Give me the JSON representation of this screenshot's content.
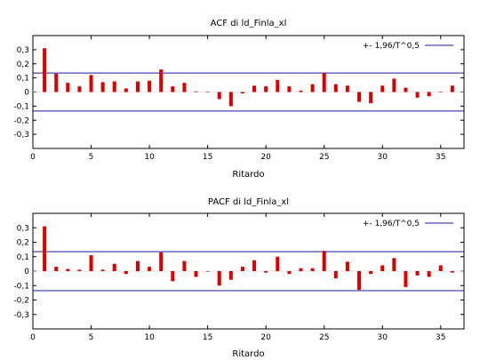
{
  "chart_data": [
    {
      "type": "bar",
      "title": "ACF di ld_Finla_xl",
      "xlabel": "Ritardo",
      "ylabel": "",
      "xlim": [
        0,
        37
      ],
      "ylim": [
        -0.4,
        0.4
      ],
      "x_ticks": [
        "0",
        "5",
        "10",
        "15",
        "20",
        "25",
        "30",
        "35"
      ],
      "y_ticks": [
        "0,3",
        "0,2",
        "0,1",
        "0",
        "-0,1",
        "-0,2",
        "-0,3"
      ],
      "legend": {
        "label": "+- 1,96/T^0,5",
        "position": "top-right"
      },
      "band": 0.135,
      "lags": [
        1,
        2,
        3,
        4,
        5,
        6,
        7,
        8,
        9,
        10,
        11,
        12,
        13,
        14,
        15,
        16,
        17,
        18,
        19,
        20,
        21,
        22,
        23,
        24,
        25,
        26,
        27,
        28,
        29,
        30,
        31,
        32,
        33,
        34,
        35,
        36
      ],
      "values": [
        0.31,
        0.13,
        0.065,
        0.04,
        0.12,
        0.07,
        0.075,
        0.025,
        0.075,
        0.08,
        0.16,
        0.04,
        0.065,
        0.005,
        0.0,
        -0.05,
        -0.1,
        -0.01,
        0.045,
        0.04,
        0.085,
        0.04,
        0.01,
        0.055,
        0.135,
        0.055,
        0.045,
        -0.07,
        -0.08,
        0.045,
        0.095,
        0.03,
        -0.04,
        -0.03,
        0.0,
        0.045
      ],
      "colors": {
        "bars": "#dd0000",
        "band": "#1a1a9a",
        "frame": "#000000"
      }
    },
    {
      "type": "bar",
      "title": "PACF di ld_Finla_xl",
      "xlabel": "Ritardo",
      "ylabel": "",
      "xlim": [
        0,
        37
      ],
      "ylim": [
        -0.4,
        0.4
      ],
      "x_ticks": [
        "0",
        "5",
        "10",
        "15",
        "20",
        "25",
        "30",
        "35"
      ],
      "y_ticks": [
        "0,3",
        "0,2",
        "0,1",
        "0",
        "-0,1",
        "-0,2",
        "-0,3"
      ],
      "legend": {
        "label": "+- 1,96/T^0,5",
        "position": "top-right"
      },
      "band": 0.135,
      "lags": [
        1,
        2,
        3,
        4,
        5,
        6,
        7,
        8,
        9,
        10,
        11,
        12,
        13,
        14,
        15,
        16,
        17,
        18,
        19,
        20,
        21,
        22,
        23,
        24,
        25,
        26,
        27,
        28,
        29,
        30,
        31,
        32,
        33,
        34,
        35,
        36
      ],
      "values": [
        0.31,
        0.03,
        0.015,
        0.01,
        0.11,
        0.01,
        0.05,
        -0.02,
        0.07,
        0.03,
        0.13,
        -0.07,
        0.07,
        -0.04,
        0.0,
        -0.1,
        -0.06,
        0.03,
        0.075,
        -0.01,
        0.1,
        -0.02,
        0.02,
        0.02,
        0.14,
        -0.05,
        0.065,
        -0.13,
        -0.02,
        0.04,
        0.09,
        -0.11,
        -0.03,
        -0.04,
        0.04,
        -0.01
      ],
      "colors": {
        "bars": "#dd0000",
        "band": "#1a1a9a",
        "frame": "#000000"
      }
    }
  ]
}
